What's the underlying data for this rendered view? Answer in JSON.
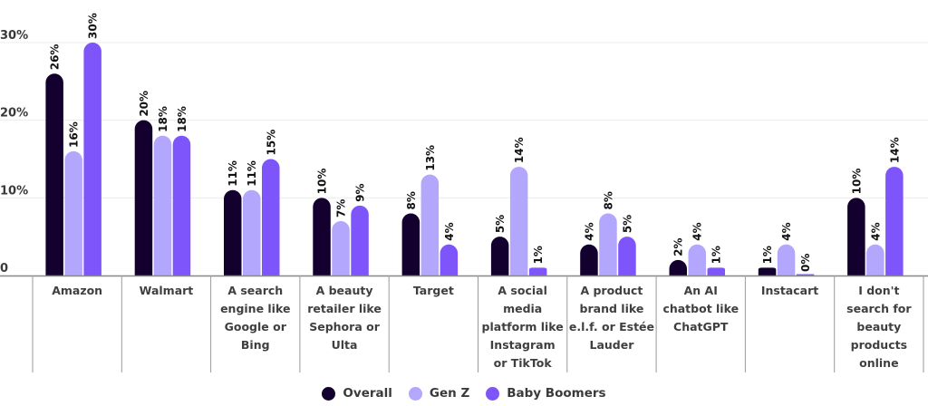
{
  "chart_data": {
    "type": "bar",
    "title": "",
    "xlabel": "",
    "ylabel": "",
    "ylim": [
      0,
      30
    ],
    "yticks": [
      {
        "value": 0,
        "label": "0"
      },
      {
        "value": 10,
        "label": "10%"
      },
      {
        "value": 20,
        "label": "20%"
      },
      {
        "value": 30,
        "label": "30%"
      }
    ],
    "grid": true,
    "legend_position": "bottom-center",
    "categories": [
      [
        "Amazon"
      ],
      [
        "Walmart"
      ],
      [
        "A search",
        "engine like",
        "Google or",
        "Bing"
      ],
      [
        "A beauty",
        "retailer like",
        "Sephora or",
        "Ulta"
      ],
      [
        "Target"
      ],
      [
        "A social",
        "media",
        "platform like",
        "Instagram",
        "or TikTok"
      ],
      [
        "A product",
        "brand like",
        "e.l.f. or Estée",
        "Lauder"
      ],
      [
        "An AI",
        "chatbot like",
        "ChatGPT"
      ],
      [
        "Instacart"
      ],
      [
        "I don't",
        "search for",
        "beauty",
        "products",
        "online"
      ]
    ],
    "series": [
      {
        "name": "Overall",
        "color": "#14002f",
        "values": [
          26,
          20,
          11,
          10,
          8,
          5,
          4,
          2,
          1,
          10
        ]
      },
      {
        "name": "Gen Z",
        "color": "#b3a6fd",
        "values": [
          16,
          18,
          11,
          7,
          13,
          14,
          8,
          4,
          4,
          4
        ]
      },
      {
        "name": "Baby Boomers",
        "color": "#7e55fb",
        "values": [
          30,
          18,
          15,
          9,
          4,
          1,
          5,
          1,
          0,
          14
        ]
      }
    ],
    "value_suffix": "%"
  }
}
